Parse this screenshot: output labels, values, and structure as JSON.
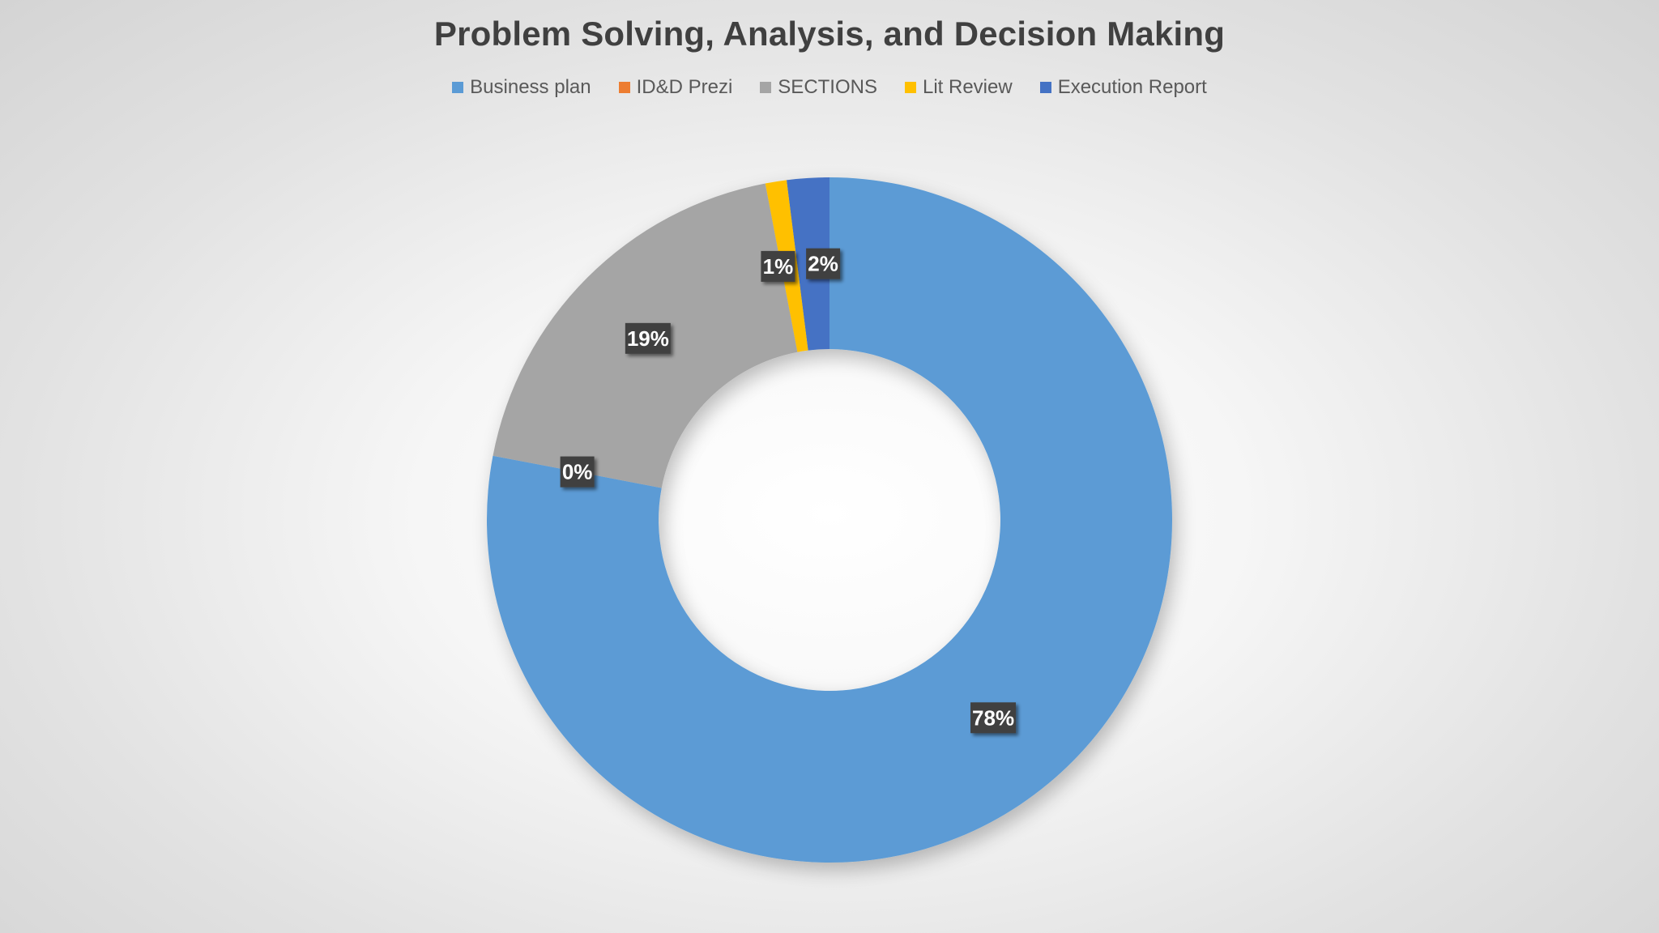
{
  "chart_data": {
    "type": "pie",
    "variant": "donut",
    "title": "Problem Solving, Analysis, and Decision Making",
    "legend_position": "top",
    "categories": [
      "Business plan",
      "ID&D Prezi",
      "SECTIONS",
      "Lit Review",
      "Execution Report"
    ],
    "values": [
      78,
      0,
      19,
      1,
      2
    ],
    "data_labels": [
      "78%",
      "0%",
      "19%",
      "1%",
      "2%"
    ],
    "colors": [
      "#5b9bd5",
      "#ed7d31",
      "#a5a5a5",
      "#ffc000",
      "#4472c4"
    ],
    "start_category": "Execution Report",
    "direction": "clockwise"
  }
}
